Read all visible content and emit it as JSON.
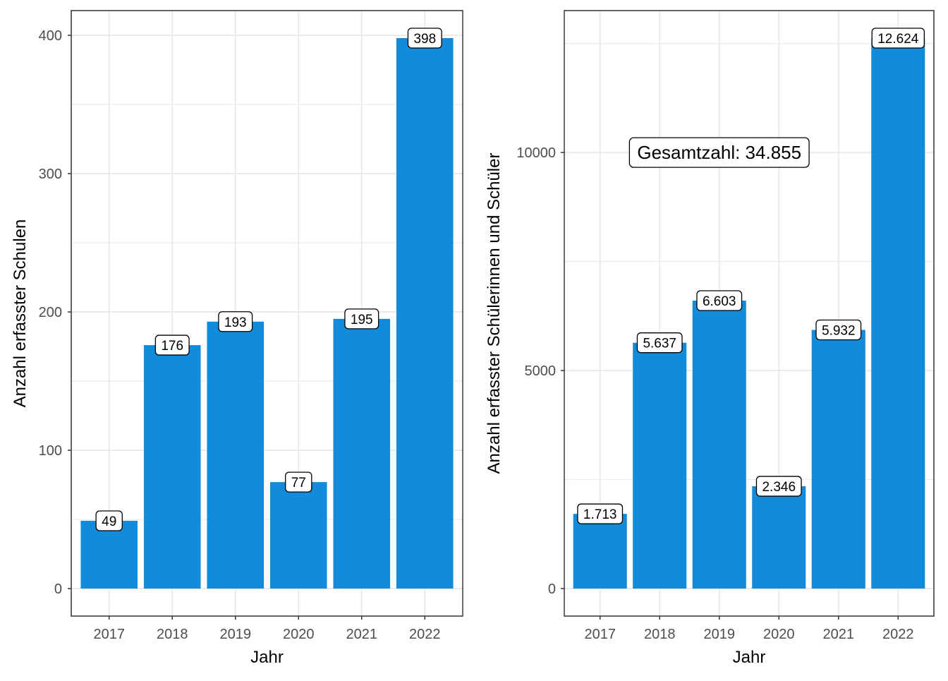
{
  "chart_data": [
    {
      "type": "bar",
      "xlabel": "Jahr",
      "ylabel": "Anzahl erfasster Schulen",
      "categories": [
        "2017",
        "2018",
        "2019",
        "2020",
        "2021",
        "2022"
      ],
      "values": [
        49,
        176,
        193,
        77,
        195,
        398
      ],
      "value_labels": [
        "49",
        "176",
        "193",
        "77",
        "195",
        "398"
      ],
      "yticks": [
        0,
        100,
        200,
        300,
        400
      ],
      "ytick_labels": [
        "0",
        "100",
        "200",
        "300",
        "400"
      ],
      "ylim": [
        -19.9,
        417.9
      ],
      "grid": true,
      "bar_color": "#138BDB"
    },
    {
      "type": "bar",
      "xlabel": "Jahr",
      "ylabel": "Anzahl erfasster Schülerinnen und Schüler",
      "categories": [
        "2017",
        "2018",
        "2019",
        "2020",
        "2021",
        "2022"
      ],
      "values": [
        1713,
        5637,
        6603,
        2346,
        5932,
        12624
      ],
      "value_labels": [
        "1.713",
        "5.637",
        "6.603",
        "2.346",
        "5.932",
        "12.624"
      ],
      "yticks": [
        0,
        5000,
        10000
      ],
      "ytick_labels": [
        "0",
        "5000",
        "10000"
      ],
      "ylim": [
        -631,
        13255
      ],
      "grid": true,
      "bar_color": "#138BDB",
      "annotation": {
        "text": "Gesamtzahl:  34.855",
        "x": "2019",
        "y": 10000
      }
    }
  ]
}
